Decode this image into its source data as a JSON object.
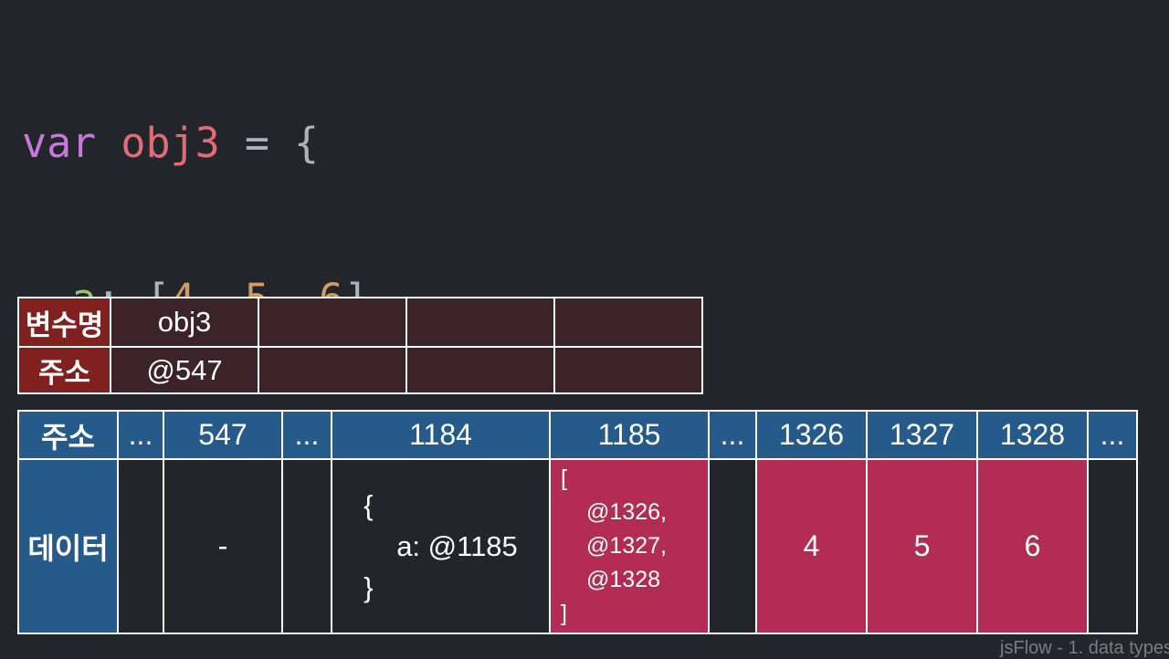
{
  "code": {
    "line1": {
      "kw": "var",
      "name": "obj3",
      "op": "=",
      "brace": "{"
    },
    "line2": {
      "prop": "a",
      "colon": ":",
      "open": "[",
      "n1": "4",
      "n2": "5",
      "n3": "6",
      "comma": ",",
      "close": "]"
    },
    "line3": {
      "text": "};"
    },
    "colors": {
      "keyword": "#c678dd",
      "variable": "#e06c75",
      "property": "#98c379",
      "number": "#d19a66",
      "punctuation": "#abb2bf"
    }
  },
  "variable_table": {
    "name_header": "변수명",
    "address_header": "주소",
    "name": "obj3",
    "address": "@547"
  },
  "memory_table": {
    "address_header": "주소",
    "data_header": "데이터",
    "addresses": [
      "...",
      "547",
      "...",
      "1184",
      "1185",
      "...",
      "1326",
      "1327",
      "1328",
      "..."
    ],
    "cells": {
      "c547": "-",
      "c1184": {
        "open": "{",
        "body": "a: @1185",
        "close": "}"
      },
      "c1185": {
        "open": "[",
        "items": [
          "@1326,",
          "@1327,",
          "@1328"
        ],
        "close": "]"
      },
      "c1326": "4",
      "c1327": "5",
      "c1328": "6"
    },
    "colors": {
      "header_blue": "#255a8a",
      "data_red": "#b22c54",
      "var_header_red": "#80201f"
    }
  },
  "footer": "jsFlow - 1. data types"
}
